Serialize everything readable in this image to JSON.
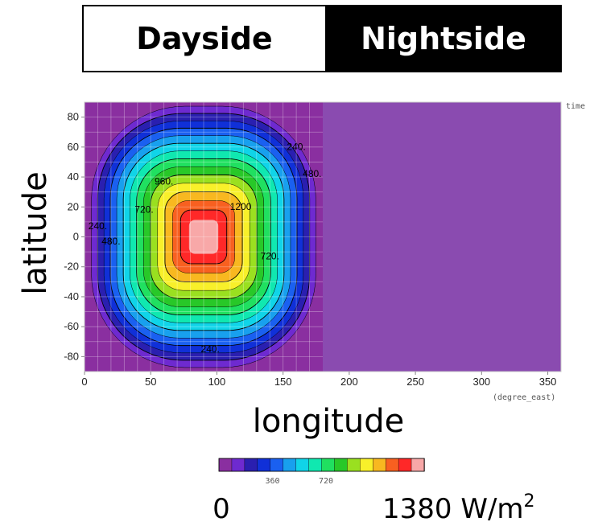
{
  "header": {
    "dayside": "Dayside",
    "nightside": "Nightside"
  },
  "chart_data": {
    "type": "heatmap",
    "title": "",
    "xlabel": "longitude",
    "ylabel": "latitude",
    "x_unit": "(degree_east)",
    "corner_text": "time",
    "xlim": [
      0,
      360
    ],
    "ylim": [
      -90,
      90
    ],
    "xticks": [
      0,
      50,
      100,
      150,
      200,
      250,
      300,
      350
    ],
    "yticks": [
      80,
      60,
      40,
      20,
      0,
      -20,
      -40,
      -60,
      -80
    ],
    "nightside_start_lon": 180,
    "nightside_value": 0,
    "substellar_point": {
      "lon": 90,
      "lat": 0
    },
    "contour_levels": [
      120,
      240,
      360,
      480,
      600,
      720,
      840,
      960,
      1080,
      1200,
      1320
    ],
    "contour_labels": [
      {
        "text": "240.",
        "lon": 160,
        "lat": 58
      },
      {
        "text": "480.",
        "lon": 172,
        "lat": 40
      },
      {
        "text": "960.",
        "lon": 60,
        "lat": 35
      },
      {
        "text": "1200",
        "lon": 118,
        "lat": 18
      },
      {
        "text": "720.",
        "lon": 45,
        "lat": 16
      },
      {
        "text": "240.",
        "lon": 10,
        "lat": 5
      },
      {
        "text": "480.",
        "lon": 20,
        "lat": -5
      },
      {
        "text": "720.",
        "lon": 140,
        "lat": -15
      },
      {
        "text": "240.",
        "lon": 95,
        "lat": -77
      }
    ],
    "colorbar": {
      "min": 0,
      "max": 1380,
      "unit": "W/m",
      "unit_sup": "2",
      "min_label": "0",
      "tick_labels": [
        "360",
        "720"
      ],
      "colors": [
        "#8a2fa0",
        "#6e2ad0",
        "#2a1fb0",
        "#1030d8",
        "#1a60f0",
        "#18a0ee",
        "#10d4e8",
        "#10e8b0",
        "#20e060",
        "#28c828",
        "#9ae020",
        "#f8f02a",
        "#f8b820",
        "#f86020",
        "#ff2828",
        "#f8a8a8"
      ]
    }
  },
  "colors": {
    "night": "#8a4bb0",
    "frame": "#c8c8c8"
  }
}
